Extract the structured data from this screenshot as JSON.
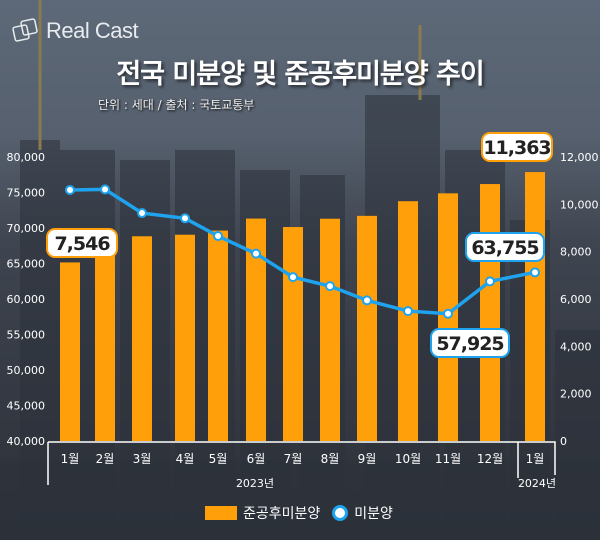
{
  "brand": "Real Cast",
  "title": "전국 미분양 및 준공후미분양 추이",
  "subtitle": "단위 : 세대 / 출처 : 국토교통부",
  "chart_data": {
    "type": "bar+line",
    "title": "전국 미분양 및 준공후미분양 추이",
    "categories": [
      "1월",
      "2월",
      "3월",
      "4월",
      "5월",
      "6월",
      "7월",
      "8월",
      "9월",
      "10월",
      "11월",
      "12월",
      "1월"
    ],
    "year_labels": [
      "2023년",
      "2024년"
    ],
    "series": [
      {
        "name": "준공후미분양",
        "type": "bar",
        "axis": "right",
        "color": "#ff9f0a",
        "values": [
          7546,
          8554,
          8650,
          8716,
          8892,
          9399,
          9041,
          9392,
          9513,
          10133,
          10465,
          10857,
          11363
        ]
      },
      {
        "name": "미분양",
        "type": "line",
        "axis": "left",
        "color": "#1fa3ee",
        "values": [
          75359,
          75438,
          72104,
          71365,
          68865,
          66388,
          63087,
          61811,
          59806,
          58299,
          57925,
          62489,
          63755
        ]
      }
    ],
    "left_axis": {
      "range": [
        40000,
        80000
      ],
      "ticks": [
        "40,000",
        "45,000",
        "50,000",
        "55,000",
        "60,000",
        "65,000",
        "70,000",
        "75,000",
        "80,000"
      ]
    },
    "right_axis": {
      "range": [
        0,
        12000
      ],
      "ticks": [
        "0",
        "2,000",
        "4,000",
        "6,000",
        "8,000",
        "10,000",
        "12,000"
      ]
    },
    "callouts": [
      "7,546",
      "11,363",
      "57,925",
      "63,755"
    ],
    "legend": [
      "준공후미분양",
      "미분양"
    ],
    "legend_position": "bottom"
  }
}
